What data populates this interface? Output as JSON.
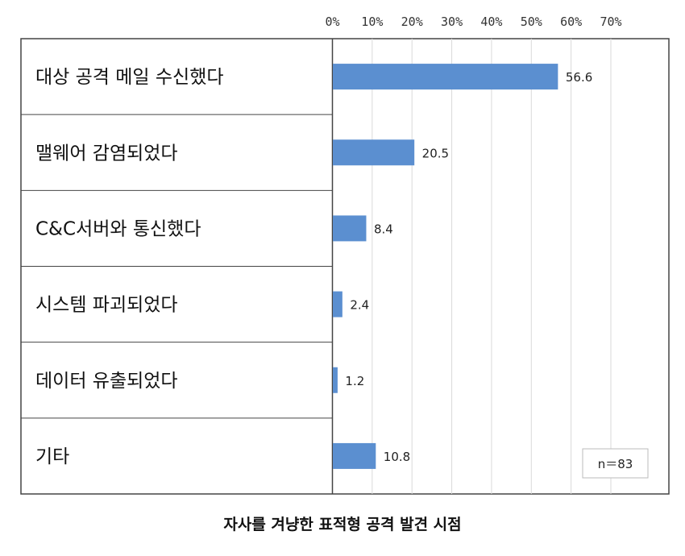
{
  "chart_data": {
    "type": "bar",
    "orientation": "horizontal",
    "title": "자사를 겨냥한 표적형 공격 발견 시점",
    "categories": [
      "대상 공격 메일 수신했다",
      "맬웨어 감염되었다",
      "C&C서버와 통신했다",
      "시스템 파괴되었다",
      "데이터 유출되었다",
      "기타"
    ],
    "values": [
      56.6,
      20.5,
      8.4,
      2.4,
      1.2,
      10.8
    ],
    "data_labels": [
      "56.6",
      "20.5",
      "8.4",
      "2.4",
      "1.2",
      "10.8"
    ],
    "xlim": [
      0,
      70
    ],
    "x_ticks": [
      "0%",
      "10%",
      "20%",
      "30%",
      "40%",
      "50%",
      "60%",
      "70%"
    ],
    "x_tick_values": [
      0,
      10,
      20,
      30,
      40,
      50,
      60,
      70
    ],
    "grid": true,
    "bar_color": "#5b8fd0",
    "annotation": "n＝83"
  }
}
